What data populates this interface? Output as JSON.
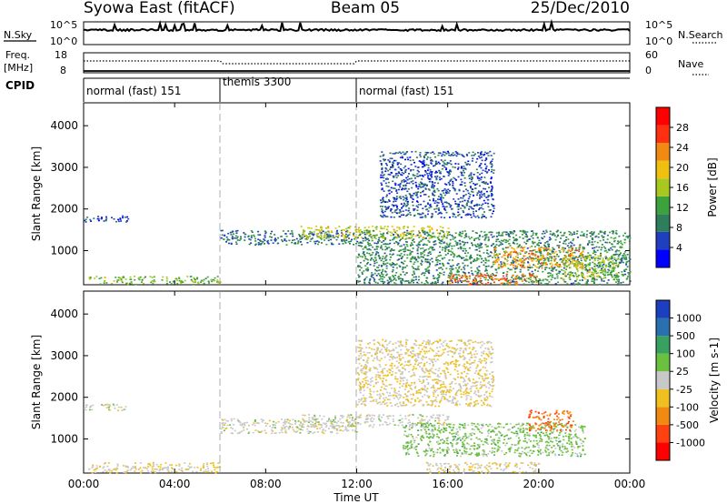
{
  "header": {
    "title_left": "Syowa East (fitACF)",
    "title_center": "Beam 05",
    "title_right": "25/Dec/2010"
  },
  "strip": {
    "nsky_label": "N.Sky",
    "nsky_ticks": [
      "10^5",
      "10^0"
    ],
    "nsearch_label": "N.Search",
    "nsearch_ticks": [
      "10^5",
      "10^0"
    ],
    "freq_label": "Freq.",
    "freq_unit": "[MHz]",
    "freq_ticks": [
      "18",
      "8"
    ],
    "nave_label": "Nave",
    "nave_ticks": [
      "60",
      "0"
    ],
    "cpid_label": "CPID"
  },
  "cpid_segments": [
    {
      "label": "normal (fast) 151",
      "start_h": 0,
      "end_h": 6
    },
    {
      "label": "themis 3300",
      "start_h": 6,
      "end_h": 12
    },
    {
      "label": "normal (fast) 151",
      "start_h": 12,
      "end_h": 24
    }
  ],
  "axes": {
    "xlabel": "Time UT",
    "xticks": [
      "00:00",
      "04:00",
      "08:00",
      "12:00",
      "16:00",
      "20:00",
      "00:00"
    ],
    "ylabel": "Slant Range [km]",
    "yticks": [
      "1000",
      "2000",
      "3000",
      "4000"
    ]
  },
  "colorbars": {
    "power": {
      "label": "Power [dB]",
      "ticks": [
        "4",
        "8",
        "12",
        "16",
        "20",
        "24",
        "28"
      ],
      "colors": [
        "#0000ff",
        "#1f3fbf",
        "#2e7d5b",
        "#3ca33c",
        "#a8c820",
        "#f0c010",
        "#f08a10",
        "#ff3010",
        "#ff0000"
      ]
    },
    "velocity": {
      "label": "Velocity [m s-1]",
      "ticks": [
        "1000",
        "500",
        "100",
        "25",
        "-25",
        "-100",
        "-500",
        "-1000"
      ],
      "colors": [
        "#1c3fc0",
        "#2a6fb0",
        "#3aa060",
        "#6cc040",
        "#c8c8c8",
        "#f0c020",
        "#f08a10",
        "#ff4010",
        "#ff0000"
      ]
    }
  },
  "chart_data": [
    {
      "type": "heatmap",
      "title": "Power",
      "xlabel": "Time UT",
      "ylabel": "Slant Range [km]",
      "xlim_hours": [
        0,
        24
      ],
      "ylim_km": [
        180,
        4550
      ],
      "colorbar_label": "Power [dB]",
      "colorbar_range": [
        0,
        32
      ],
      "echo_regions": [
        {
          "t0": 0.2,
          "t1": 6.0,
          "r0": 200,
          "r1": 400,
          "value": 14
        },
        {
          "t0": 0.0,
          "t1": 2.0,
          "r0": 1700,
          "r1": 1850,
          "value": 6
        },
        {
          "t0": 6.0,
          "t1": 12.0,
          "r0": 1150,
          "r1": 1500,
          "value": 8
        },
        {
          "t0": 9.5,
          "t1": 16.0,
          "r0": 1300,
          "r1": 1600,
          "value": 18
        },
        {
          "t0": 12.0,
          "t1": 24.0,
          "r0": 200,
          "r1": 1500,
          "value": 10
        },
        {
          "t0": 13.0,
          "t1": 18.0,
          "r0": 1800,
          "r1": 3400,
          "value": 6
        },
        {
          "t0": 16.0,
          "t1": 20.0,
          "r0": 200,
          "r1": 450,
          "value": 24
        },
        {
          "t0": 18.0,
          "t1": 22.0,
          "r0": 600,
          "r1": 1100,
          "value": 22
        },
        {
          "t0": 21.0,
          "t1": 23.5,
          "r0": 300,
          "r1": 900,
          "value": 16
        }
      ]
    },
    {
      "type": "heatmap",
      "title": "Velocity",
      "xlabel": "Time UT",
      "ylabel": "Slant Range [km]",
      "xlim_hours": [
        0,
        24
      ],
      "ylim_km": [
        180,
        4550
      ],
      "colorbar_label": "Velocity [m s-1]",
      "colorbar_range": [
        -1000,
        1000
      ],
      "echo_regions": [
        {
          "t0": 0.2,
          "t1": 6.0,
          "r0": 200,
          "r1": 450,
          "value": -100
        },
        {
          "t0": 0.0,
          "t1": 2.0,
          "r0": 1700,
          "r1": 1850,
          "value": 0
        },
        {
          "t0": 6.0,
          "t1": 12.0,
          "r0": 1150,
          "r1": 1500,
          "value": 0
        },
        {
          "t0": 9.5,
          "t1": 16.0,
          "r0": 1300,
          "r1": 1600,
          "value": 0
        },
        {
          "t0": 14.0,
          "t1": 22.0,
          "r0": 600,
          "r1": 1400,
          "value": 200
        },
        {
          "t0": 15.0,
          "t1": 20.0,
          "r0": 200,
          "r1": 450,
          "value": -100
        },
        {
          "t0": 19.5,
          "t1": 21.5,
          "r0": 1200,
          "r1": 1700,
          "value": -500
        },
        {
          "t0": 12.0,
          "t1": 18.0,
          "r0": 1800,
          "r1": 3400,
          "value": -100
        }
      ]
    }
  ]
}
